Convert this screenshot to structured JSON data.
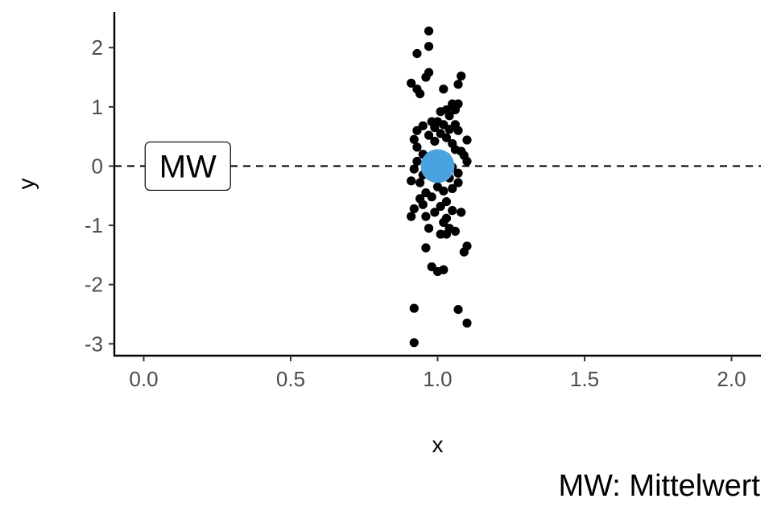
{
  "chart_data": {
    "type": "scatter",
    "title": "",
    "xlabel": "x",
    "ylabel": "y",
    "xlim": [
      -0.1,
      2.1
    ],
    "ylim": [
      -3.2,
      2.6
    ],
    "xticks": [
      "0.0",
      "0.5",
      "1.0",
      "1.5",
      "2.0"
    ],
    "xtick_values": [
      0.0,
      0.5,
      1.0,
      1.5,
      2.0
    ],
    "yticks": [
      "2",
      "1",
      "0",
      "-1",
      "-2",
      "-3"
    ],
    "ytick_values": [
      2,
      1,
      0,
      -1,
      -2,
      -3
    ],
    "grid": false,
    "points": [
      {
        "x": 0.97,
        "y": 2.28
      },
      {
        "x": 0.97,
        "y": 2.02
      },
      {
        "x": 0.93,
        "y": 1.9
      },
      {
        "x": 0.97,
        "y": 1.58
      },
      {
        "x": 1.08,
        "y": 1.52
      },
      {
        "x": 0.96,
        "y": 1.5
      },
      {
        "x": 0.91,
        "y": 1.4
      },
      {
        "x": 1.07,
        "y": 1.38
      },
      {
        "x": 0.93,
        "y": 1.3
      },
      {
        "x": 1.02,
        "y": 1.3
      },
      {
        "x": 0.94,
        "y": 1.22
      },
      {
        "x": 1.05,
        "y": 1.05
      },
      {
        "x": 1.07,
        "y": 1.05
      },
      {
        "x": 1.03,
        "y": 0.95
      },
      {
        "x": 1.06,
        "y": 0.95
      },
      {
        "x": 1.01,
        "y": 0.92
      },
      {
        "x": 1.04,
        "y": 0.85
      },
      {
        "x": 0.98,
        "y": 0.75
      },
      {
        "x": 1.0,
        "y": 0.75
      },
      {
        "x": 1.02,
        "y": 0.7
      },
      {
        "x": 1.06,
        "y": 0.7
      },
      {
        "x": 0.95,
        "y": 0.68
      },
      {
        "x": 0.99,
        "y": 0.65
      },
      {
        "x": 1.04,
        "y": 0.62
      },
      {
        "x": 1.07,
        "y": 0.6
      },
      {
        "x": 0.93,
        "y": 0.6
      },
      {
        "x": 1.01,
        "y": 0.55
      },
      {
        "x": 0.97,
        "y": 0.52
      },
      {
        "x": 0.92,
        "y": 0.45
      },
      {
        "x": 1.03,
        "y": 0.48
      },
      {
        "x": 1.1,
        "y": 0.44
      },
      {
        "x": 0.99,
        "y": 0.42
      },
      {
        "x": 0.93,
        "y": 0.32
      },
      {
        "x": 1.05,
        "y": 0.38
      },
      {
        "x": 1.06,
        "y": 0.28
      },
      {
        "x": 1.08,
        "y": 0.25
      },
      {
        "x": 0.95,
        "y": 0.2
      },
      {
        "x": 1.09,
        "y": 0.18
      },
      {
        "x": 1.03,
        "y": 0.15
      },
      {
        "x": 0.93,
        "y": 0.08
      },
      {
        "x": 1.1,
        "y": 0.08
      },
      {
        "x": 0.96,
        "y": 0.0
      },
      {
        "x": 1.05,
        "y": -0.02
      },
      {
        "x": 0.92,
        "y": -0.05
      },
      {
        "x": 1.07,
        "y": -0.12
      },
      {
        "x": 0.95,
        "y": -0.15
      },
      {
        "x": 0.91,
        "y": -0.25
      },
      {
        "x": 1.04,
        "y": -0.2
      },
      {
        "x": 0.94,
        "y": -0.28
      },
      {
        "x": 1.07,
        "y": -0.28
      },
      {
        "x": 1.0,
        "y": -0.35
      },
      {
        "x": 1.05,
        "y": -0.38
      },
      {
        "x": 0.96,
        "y": -0.45
      },
      {
        "x": 1.02,
        "y": -0.42
      },
      {
        "x": 0.94,
        "y": -0.55
      },
      {
        "x": 0.98,
        "y": -0.52
      },
      {
        "x": 1.03,
        "y": -0.6
      },
      {
        "x": 1.01,
        "y": -0.68
      },
      {
        "x": 0.95,
        "y": -0.65
      },
      {
        "x": 0.92,
        "y": -0.72
      },
      {
        "x": 1.05,
        "y": -0.75
      },
      {
        "x": 0.99,
        "y": -0.78
      },
      {
        "x": 1.08,
        "y": -0.78
      },
      {
        "x": 0.91,
        "y": -0.85
      },
      {
        "x": 0.96,
        "y": -0.85
      },
      {
        "x": 1.03,
        "y": -0.88
      },
      {
        "x": 1.02,
        "y": -0.95
      },
      {
        "x": 0.97,
        "y": -1.05
      },
      {
        "x": 1.04,
        "y": -1.05
      },
      {
        "x": 1.06,
        "y": -1.1
      },
      {
        "x": 1.03,
        "y": -1.15
      },
      {
        "x": 1.01,
        "y": -1.15
      },
      {
        "x": 1.1,
        "y": -1.35
      },
      {
        "x": 0.96,
        "y": -1.38
      },
      {
        "x": 1.09,
        "y": -1.45
      },
      {
        "x": 0.98,
        "y": -1.7
      },
      {
        "x": 1.02,
        "y": -1.75
      },
      {
        "x": 1.0,
        "y": -1.78
      },
      {
        "x": 0.92,
        "y": -2.4
      },
      {
        "x": 1.07,
        "y": -2.42
      },
      {
        "x": 1.1,
        "y": -2.65
      },
      {
        "x": 0.92,
        "y": -2.98
      }
    ],
    "mean_point": {
      "x": 1.0,
      "y": 0.0,
      "color": "#4aa3e0"
    },
    "reference_line": {
      "y": 0,
      "style": "dashed"
    },
    "annotation": {
      "label": "MW",
      "x": 0.15,
      "y": 0.0
    },
    "caption": "MW: Mittelwert",
    "colors": {
      "points": "#000000",
      "mean": "#4aa3e0",
      "axis": "#000000"
    }
  }
}
